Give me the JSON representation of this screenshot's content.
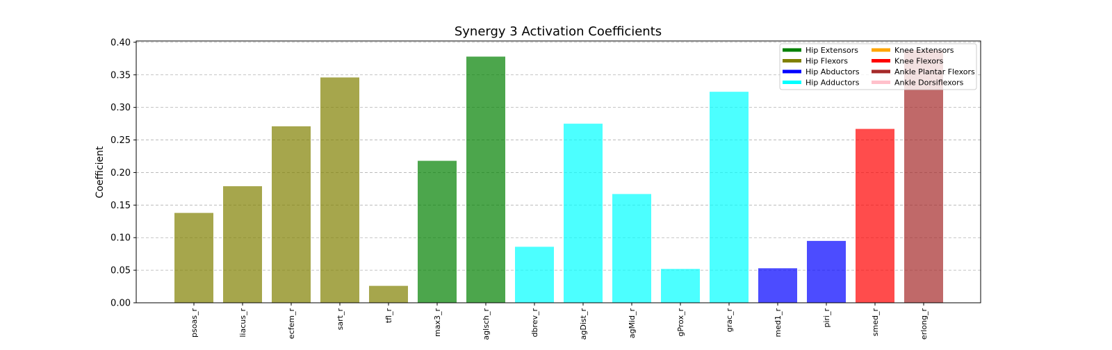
{
  "chart_data": {
    "type": "bar",
    "title": "Synergy 3 Activation Coefficients",
    "xlabel": "",
    "ylabel": "Coefficient",
    "ylim": [
      0,
      0.402
    ],
    "yticks": [
      0.0,
      0.05,
      0.1,
      0.15,
      0.2,
      0.25,
      0.3,
      0.35,
      0.4
    ],
    "ytick_labels": [
      "0.00",
      "0.05",
      "0.10",
      "0.15",
      "0.20",
      "0.25",
      "0.30",
      "0.35",
      "0.40"
    ],
    "grid": "y-dashed",
    "legend_position": "top-right",
    "legend": [
      {
        "label": "Hip Extensors",
        "color": "#008000"
      },
      {
        "label": "Hip Flexors",
        "color": "#808000"
      },
      {
        "label": "Hip Abductors",
        "color": "#0000ff"
      },
      {
        "label": "Hip Adductors",
        "color": "#00ffff"
      },
      {
        "label": "Knee Extensors",
        "color": "#ffa500"
      },
      {
        "label": "Knee Flexors",
        "color": "#ff0000"
      },
      {
        "label": "Ankle Plantar Flexors",
        "color": "#a52a2a"
      },
      {
        "label": "Ankle Dorsiflexors",
        "color": "#ffc0cb"
      }
    ],
    "categories": [
      "psoas_r",
      "liacus_r",
      "ecfem_r",
      "sart_r",
      "tfl_r",
      "max3_r",
      "aglsch_r",
      "dbrev_r",
      "agDist_r",
      "agMid_r",
      "gProx_r",
      "grac_r",
      "med1_r",
      "piri_r",
      "smed_r",
      "erlong_r"
    ],
    "values": [
      0.138,
      0.179,
      0.271,
      0.346,
      0.026,
      0.218,
      0.378,
      0.086,
      0.275,
      0.167,
      0.052,
      0.324,
      0.053,
      0.095,
      0.267,
      0.388
    ],
    "bar_colors": [
      "#808000",
      "#808000",
      "#808000",
      "#808000",
      "#808000",
      "#008000",
      "#008000",
      "#00ffff",
      "#00ffff",
      "#00ffff",
      "#00ffff",
      "#00ffff",
      "#0000ff",
      "#0000ff",
      "#ff0000",
      "#a52a2a"
    ]
  }
}
